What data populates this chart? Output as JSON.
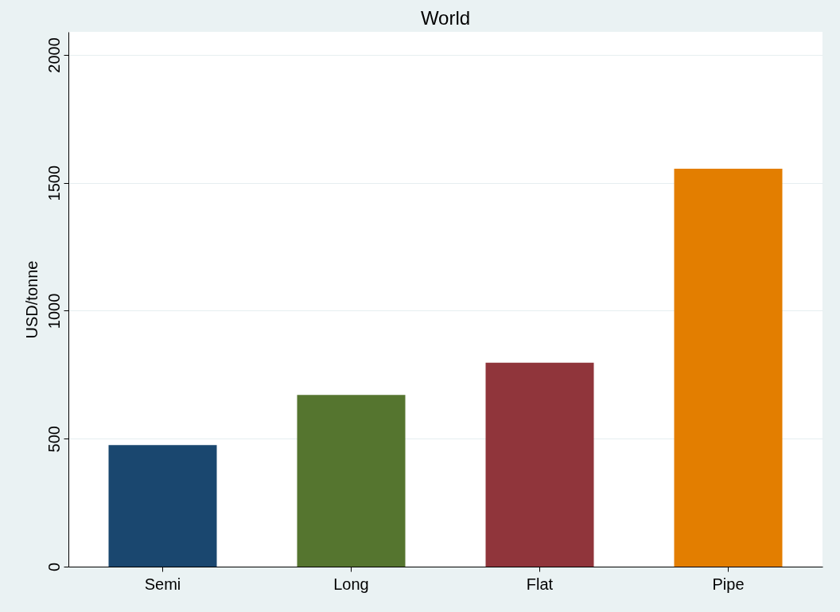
{
  "chart_data": {
    "type": "bar",
    "title": "World",
    "ylabel": "USD/tonne",
    "categories": [
      "Semi",
      "Long",
      "Flat",
      "Pipe"
    ],
    "values": [
      475,
      671,
      797,
      1555
    ],
    "colors": [
      "#1a476f",
      "#55752f",
      "#90353b",
      "#e37e00"
    ],
    "ylim": [
      0,
      2090
    ],
    "yticks": [
      0,
      500,
      1000,
      1500,
      2000
    ],
    "grid": "y",
    "legend": false
  }
}
